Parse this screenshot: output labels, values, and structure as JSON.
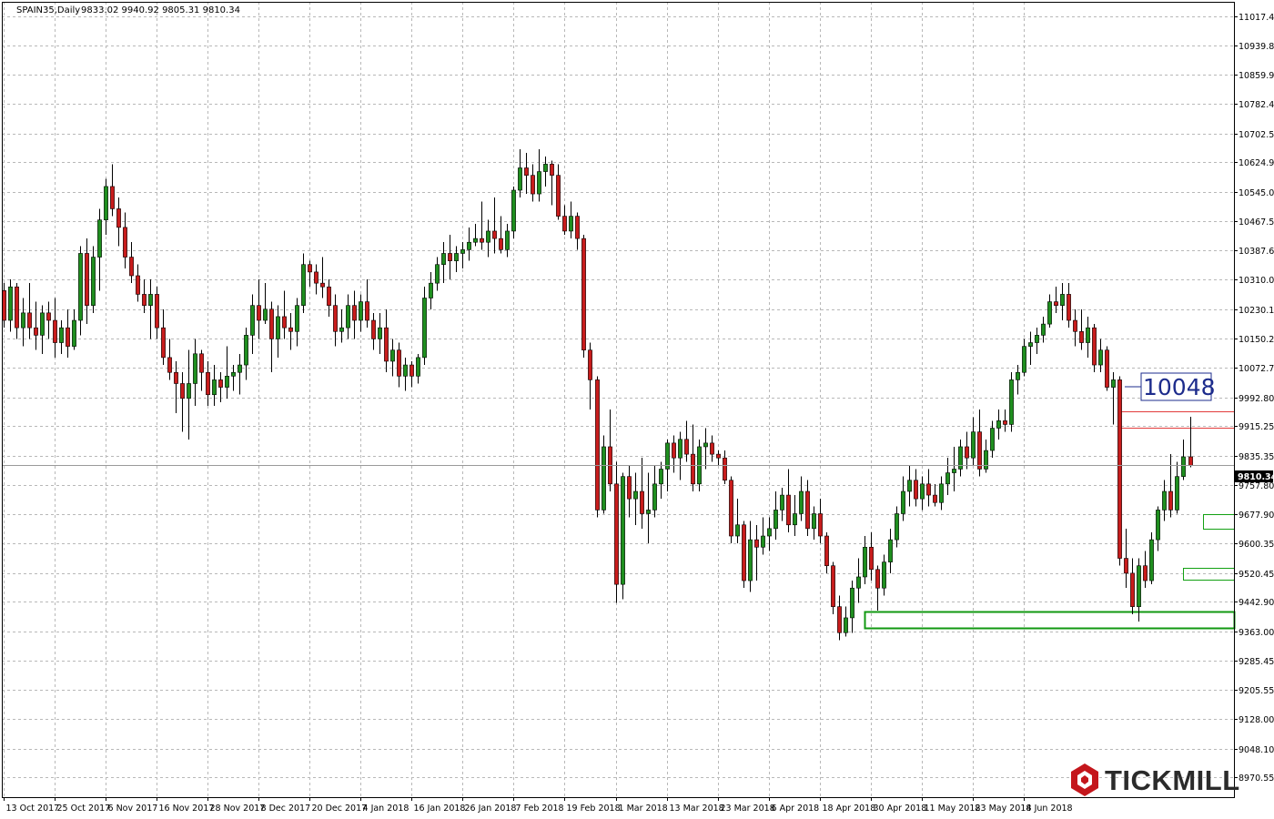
{
  "header": {
    "symbol": "SPAIN35,Daily",
    "ohlc": "9833.02 9940.92 9805.31 9810.34"
  },
  "logo": {
    "text": "TICKMILL"
  },
  "annotation": {
    "label": "10048"
  },
  "price_tag": {
    "label": "9810.34"
  },
  "colors": {
    "up_candle": "#1f8f1f",
    "down_candle": "#c81c1c",
    "support_zone": "#12a012",
    "resistance_zone": "#e23b3b",
    "annotation": "#1d2c8c",
    "logo_mark": "#c4161c"
  },
  "chart_data": {
    "type": "candlestick",
    "title": "SPAIN35,Daily",
    "grid": true,
    "y_axis_position": "right",
    "ylim": [
      8970.55,
      11057.0
    ],
    "y_ticks": [
      "11017.40",
      "10939.85",
      "10859.95",
      "10782.40",
      "10702.50",
      "10624.95",
      "10545.05",
      "10467.50",
      "10387.60",
      "10310.05",
      "10230.15",
      "10150.25",
      "10072.70",
      "9992.80",
      "9915.25",
      "9835.35",
      "9757.80",
      "9677.90",
      "9600.35",
      "9520.45",
      "9442.90",
      "9363.00",
      "9285.45",
      "9205.55",
      "9128.00",
      "9048.10",
      "8970.55"
    ],
    "x_ticks": [
      "13 Oct 2017",
      "25 Oct 2017",
      "6 Nov 2017",
      "16 Nov 2017",
      "28 Nov 2017",
      "8 Dec 2017",
      "20 Dec 2017",
      "4 Jan 2018",
      "16 Jan 2018",
      "26 Jan 2018",
      "7 Feb 2018",
      "19 Feb 2018",
      "1 Mar 2018",
      "13 Mar 2018",
      "23 Mar 2018",
      "6 Apr 2018",
      "18 Apr 2018",
      "30 Apr 2018",
      "11 May 2018",
      "23 May 2018",
      "4 Jun 2018"
    ],
    "last_price": 9810.34,
    "annotation_level": 10048,
    "candles": [
      [
        10280,
        10300,
        10180,
        10200
      ],
      [
        10200,
        10310,
        10170,
        10290
      ],
      [
        10290,
        10300,
        10150,
        10180
      ],
      [
        10180,
        10260,
        10130,
        10220
      ],
      [
        10220,
        10300,
        10150,
        10180
      ],
      [
        10180,
        10250,
        10120,
        10160
      ],
      [
        10160,
        10240,
        10110,
        10220
      ],
      [
        10220,
        10250,
        10150,
        10200
      ],
      [
        10200,
        10260,
        10100,
        10140
      ],
      [
        10140,
        10200,
        10110,
        10180
      ],
      [
        10180,
        10230,
        10100,
        10130
      ],
      [
        10130,
        10230,
        10120,
        10200
      ],
      [
        10200,
        10400,
        10160,
        10380
      ],
      [
        10380,
        10420,
        10190,
        10240
      ],
      [
        10240,
        10400,
        10220,
        10370
      ],
      [
        10370,
        10500,
        10280,
        10470
      ],
      [
        10470,
        10580,
        10430,
        10560
      ],
      [
        10560,
        10620,
        10480,
        10500
      ],
      [
        10500,
        10530,
        10400,
        10450
      ],
      [
        10450,
        10490,
        10340,
        10370
      ],
      [
        10370,
        10410,
        10300,
        10320
      ],
      [
        10320,
        10350,
        10250,
        10270
      ],
      [
        10270,
        10310,
        10220,
        10240
      ],
      [
        10240,
        10310,
        10150,
        10270
      ],
      [
        10270,
        10290,
        10150,
        10180
      ],
      [
        10180,
        10230,
        10080,
        10100
      ],
      [
        10100,
        10150,
        10040,
        10060
      ],
      [
        10060,
        10090,
        9950,
        10030
      ],
      [
        10030,
        10060,
        9900,
        9990
      ],
      [
        9990,
        10120,
        9880,
        10030
      ],
      [
        10030,
        10150,
        9970,
        10110
      ],
      [
        10110,
        10120,
        10010,
        10060
      ],
      [
        10060,
        10090,
        9970,
        10000
      ],
      [
        10000,
        10080,
        9970,
        10040
      ],
      [
        10040,
        10060,
        9980,
        10020
      ],
      [
        10020,
        10130,
        9990,
        10050
      ],
      [
        10050,
        10080,
        10010,
        10060
      ],
      [
        10060,
        10110,
        10000,
        10080
      ],
      [
        10080,
        10180,
        10040,
        10160
      ],
      [
        10160,
        10270,
        10110,
        10240
      ],
      [
        10240,
        10310,
        10150,
        10200
      ],
      [
        10200,
        10300,
        10190,
        10230
      ],
      [
        10230,
        10250,
        10060,
        10150
      ],
      [
        10150,
        10240,
        10100,
        10210
      ],
      [
        10210,
        10280,
        10150,
        10180
      ],
      [
        10180,
        10220,
        10120,
        10170
      ],
      [
        10170,
        10260,
        10130,
        10240
      ],
      [
        10240,
        10380,
        10220,
        10350
      ],
      [
        10350,
        10360,
        10290,
        10330
      ],
      [
        10330,
        10350,
        10270,
        10300
      ],
      [
        10300,
        10370,
        10260,
        10290
      ],
      [
        10290,
        10310,
        10210,
        10240
      ],
      [
        10240,
        10270,
        10130,
        10170
      ],
      [
        10170,
        10230,
        10140,
        10180
      ],
      [
        10180,
        10270,
        10150,
        10240
      ],
      [
        10240,
        10280,
        10150,
        10200
      ],
      [
        10200,
        10270,
        10170,
        10250
      ],
      [
        10250,
        10310,
        10180,
        10200
      ],
      [
        10200,
        10220,
        10120,
        10150
      ],
      [
        10150,
        10220,
        10110,
        10180
      ],
      [
        10180,
        10230,
        10060,
        10090
      ],
      [
        10090,
        10150,
        10050,
        10120
      ],
      [
        10120,
        10140,
        10020,
        10050
      ],
      [
        10050,
        10100,
        10010,
        10080
      ],
      [
        10080,
        10090,
        10020,
        10050
      ],
      [
        10050,
        10110,
        10030,
        10100
      ],
      [
        10100,
        10290,
        10080,
        10260
      ],
      [
        10260,
        10330,
        10230,
        10300
      ],
      [
        10300,
        10370,
        10280,
        10350
      ],
      [
        10350,
        10410,
        10300,
        10380
      ],
      [
        10380,
        10430,
        10310,
        10360
      ],
      [
        10360,
        10400,
        10330,
        10380
      ],
      [
        10380,
        10410,
        10340,
        10390
      ],
      [
        10390,
        10450,
        10360,
        10410
      ],
      [
        10410,
        10460,
        10400,
        10420
      ],
      [
        10420,
        10520,
        10390,
        10410
      ],
      [
        10410,
        10470,
        10370,
        10440
      ],
      [
        10440,
        10530,
        10380,
        10420
      ],
      [
        10420,
        10480,
        10380,
        10390
      ],
      [
        10390,
        10460,
        10370,
        10440
      ],
      [
        10440,
        10560,
        10420,
        10550
      ],
      [
        10550,
        10660,
        10530,
        10610
      ],
      [
        10610,
        10650,
        10540,
        10590
      ],
      [
        10590,
        10620,
        10520,
        10540
      ],
      [
        10540,
        10660,
        10520,
        10600
      ],
      [
        10600,
        10640,
        10560,
        10620
      ],
      [
        10620,
        10630,
        10510,
        10590
      ],
      [
        10590,
        10620,
        10470,
        10480
      ],
      [
        10480,
        10510,
        10430,
        10440
      ],
      [
        10440,
        10520,
        10420,
        10480
      ],
      [
        10480,
        10490,
        10390,
        10420
      ],
      [
        10420,
        10430,
        10100,
        10120
      ],
      [
        10120,
        10140,
        9960,
        10040
      ],
      [
        10040,
        10050,
        9670,
        9690
      ],
      [
        9690,
        9890,
        9680,
        9860
      ],
      [
        9860,
        9960,
        9740,
        9760
      ],
      [
        9760,
        9820,
        9440,
        9490
      ],
      [
        9490,
        9790,
        9450,
        9780
      ],
      [
        9780,
        9810,
        9670,
        9720
      ],
      [
        9720,
        9790,
        9650,
        9740
      ],
      [
        9740,
        9830,
        9640,
        9680
      ],
      [
        9680,
        9790,
        9600,
        9690
      ],
      [
        9690,
        9810,
        9670,
        9760
      ],
      [
        9760,
        9820,
        9720,
        9800
      ],
      [
        9800,
        9880,
        9740,
        9870
      ],
      [
        9870,
        9890,
        9790,
        9830
      ],
      [
        9830,
        9900,
        9770,
        9880
      ],
      [
        9880,
        9930,
        9820,
        9840
      ],
      [
        9840,
        9920,
        9740,
        9760
      ],
      [
        9760,
        9880,
        9740,
        9860
      ],
      [
        9860,
        9910,
        9800,
        9870
      ],
      [
        9870,
        9890,
        9820,
        9840
      ],
      [
        9840,
        9850,
        9810,
        9830
      ],
      [
        9830,
        9850,
        9760,
        9770
      ],
      [
        9770,
        9780,
        9600,
        9620
      ],
      [
        9620,
        9720,
        9600,
        9650
      ],
      [
        9650,
        9660,
        9480,
        9500
      ],
      [
        9500,
        9660,
        9470,
        9610
      ],
      [
        9610,
        9650,
        9500,
        9590
      ],
      [
        9590,
        9670,
        9570,
        9620
      ],
      [
        9620,
        9670,
        9580,
        9640
      ],
      [
        9640,
        9740,
        9610,
        9690
      ],
      [
        9690,
        9750,
        9660,
        9730
      ],
      [
        9730,
        9800,
        9630,
        9650
      ],
      [
        9650,
        9730,
        9620,
        9680
      ],
      [
        9680,
        9780,
        9660,
        9740
      ],
      [
        9740,
        9770,
        9620,
        9640
      ],
      [
        9640,
        9700,
        9610,
        9680
      ],
      [
        9680,
        9720,
        9600,
        9620
      ],
      [
        9620,
        9630,
        9520,
        9540
      ],
      [
        9540,
        9550,
        9410,
        9430
      ],
      [
        9430,
        9460,
        9340,
        9360
      ],
      [
        9360,
        9430,
        9350,
        9400
      ],
      [
        9400,
        9500,
        9360,
        9480
      ],
      [
        9480,
        9560,
        9440,
        9510
      ],
      [
        9510,
        9620,
        9490,
        9590
      ],
      [
        9590,
        9630,
        9500,
        9530
      ],
      [
        9530,
        9540,
        9420,
        9480
      ],
      [
        9480,
        9570,
        9460,
        9550
      ],
      [
        9550,
        9640,
        9520,
        9610
      ],
      [
        9610,
        9700,
        9590,
        9680
      ],
      [
        9680,
        9780,
        9660,
        9740
      ],
      [
        9740,
        9810,
        9700,
        9770
      ],
      [
        9770,
        9800,
        9700,
        9720
      ],
      [
        9720,
        9780,
        9690,
        9760
      ],
      [
        9760,
        9800,
        9700,
        9730
      ],
      [
        9730,
        9760,
        9700,
        9710
      ],
      [
        9710,
        9780,
        9690,
        9760
      ],
      [
        9760,
        9830,
        9730,
        9790
      ],
      [
        9790,
        9860,
        9740,
        9800
      ],
      [
        9800,
        9880,
        9780,
        9860
      ],
      [
        9860,
        9900,
        9800,
        9830
      ],
      [
        9830,
        9940,
        9810,
        9900
      ],
      [
        9900,
        9960,
        9780,
        9800
      ],
      [
        9800,
        9880,
        9790,
        9850
      ],
      [
        9850,
        9930,
        9830,
        9910
      ],
      [
        9910,
        9960,
        9880,
        9930
      ],
      [
        9930,
        9960,
        9900,
        9920
      ],
      [
        9920,
        10060,
        9900,
        10040
      ],
      [
        10040,
        10080,
        10000,
        10060
      ],
      [
        10060,
        10150,
        10050,
        10130
      ],
      [
        10130,
        10170,
        10080,
        10140
      ],
      [
        10140,
        10180,
        10110,
        10160
      ],
      [
        10160,
        10210,
        10140,
        10190
      ],
      [
        10190,
        10270,
        10180,
        10250
      ],
      [
        10250,
        10290,
        10220,
        10240
      ],
      [
        10240,
        10300,
        10200,
        10270
      ],
      [
        10270,
        10300,
        10180,
        10200
      ],
      [
        10200,
        10230,
        10130,
        10170
      ],
      [
        10170,
        10230,
        10120,
        10140
      ],
      [
        10140,
        10210,
        10100,
        10180
      ],
      [
        10180,
        10190,
        10060,
        10080
      ],
      [
        10080,
        10150,
        10060,
        10120
      ],
      [
        10120,
        10130,
        10010,
        10020
      ],
      [
        10020,
        10060,
        9920,
        10040
      ],
      [
        10040,
        10050,
        9540,
        9560
      ],
      [
        9560,
        9640,
        9480,
        9520
      ],
      [
        9520,
        9560,
        9410,
        9430
      ],
      [
        9430,
        9560,
        9390,
        9540
      ],
      [
        9540,
        9580,
        9480,
        9500
      ],
      [
        9500,
        9630,
        9490,
        9610
      ],
      [
        9610,
        9700,
        9580,
        9690
      ],
      [
        9690,
        9770,
        9660,
        9740
      ],
      [
        9740,
        9840,
        9670,
        9690
      ],
      [
        9690,
        9820,
        9680,
        9780
      ],
      [
        9780,
        9880,
        9770,
        9833
      ],
      [
        9833,
        9941,
        9805,
        9810
      ]
    ],
    "zones": [
      {
        "type": "support",
        "from": 9375,
        "to": 9418
      },
      {
        "type": "support",
        "from": 9502,
        "to": 9534
      },
      {
        "type": "support",
        "from": 9640,
        "to": 9680
      },
      {
        "type": "resistance",
        "from": 9910,
        "to": 9955
      }
    ]
  }
}
